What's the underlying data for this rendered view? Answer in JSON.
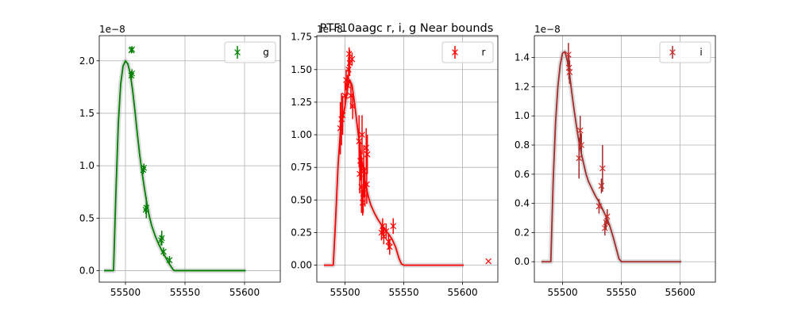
{
  "figure": {
    "title": "PTF10aagc  r, i, g Near bounds"
  },
  "chart_data": [
    {
      "type": "line",
      "panel": "left",
      "color": "#008000",
      "band_color": "#b0b0b0",
      "offset_label": "1e−8",
      "legend": {
        "label": "g",
        "placement": "top-right"
      },
      "grid": true,
      "xlim": [
        55478,
        55630
      ],
      "ylim": [
        -0.11,
        2.24
      ],
      "xticks": [
        55500,
        55550,
        55600
      ],
      "xtick_labels": [
        "55500",
        "55550",
        "55600"
      ],
      "yticks": [
        0.0,
        0.5,
        1.0,
        1.5,
        2.0
      ],
      "ytick_labels": [
        "0.0",
        "0.5",
        "1.0",
        "1.5",
        "2.0"
      ],
      "model": {
        "x": [
          55482,
          55488,
          55490,
          55492,
          55494,
          55496,
          55498,
          55500,
          55502,
          55504,
          55506,
          55508,
          55510,
          55512,
          55514,
          55516,
          55518,
          55520,
          55522,
          55525,
          55528,
          55531,
          55534,
          55537,
          55540,
          55541,
          55560,
          55580,
          55601
        ],
        "y": [
          0.0,
          0.0,
          0.0,
          0.75,
          1.4,
          1.78,
          1.95,
          2.0,
          1.97,
          1.88,
          1.72,
          1.52,
          1.3,
          1.1,
          0.93,
          0.78,
          0.64,
          0.52,
          0.43,
          0.33,
          0.25,
          0.18,
          0.12,
          0.06,
          0.01,
          0.0,
          0.0,
          0.0,
          0.0
        ]
      },
      "points": [
        {
          "x": 55505,
          "y": 2.1,
          "yerr": 0.03
        },
        {
          "x": 55505.5,
          "y": 2.11,
          "yerr": 0.03
        },
        {
          "x": 55505,
          "y": 1.86,
          "yerr": 0.04
        },
        {
          "x": 55505.5,
          "y": 1.88,
          "yerr": 0.04
        },
        {
          "x": 55515,
          "y": 0.96,
          "yerr": 0.04
        },
        {
          "x": 55515.5,
          "y": 0.98,
          "yerr": 0.04
        },
        {
          "x": 55517,
          "y": 0.58,
          "yerr": 0.04
        },
        {
          "x": 55517.5,
          "y": 0.6,
          "yerr": 0.1
        },
        {
          "x": 55530,
          "y": 0.29,
          "yerr": 0.05
        },
        {
          "x": 55530.5,
          "y": 0.31,
          "yerr": 0.07
        },
        {
          "x": 55532,
          "y": 0.18,
          "yerr": 0.04
        },
        {
          "x": 55537,
          "y": 0.1,
          "yerr": 0.04
        }
      ]
    },
    {
      "type": "line",
      "panel": "middle",
      "color": "#ff0000",
      "band_color": "#b0b0b0",
      "offset_label": "1e−8",
      "legend": {
        "label": "r",
        "placement": "top-right"
      },
      "grid": true,
      "xlim": [
        55476,
        55630
      ],
      "ylim": [
        -0.13,
        1.76
      ],
      "xticks": [
        55500,
        55550,
        55600
      ],
      "xtick_labels": [
        "55500",
        "55550",
        "55600"
      ],
      "yticks": [
        0.0,
        0.25,
        0.5,
        0.75,
        1.0,
        1.25,
        1.5,
        1.75
      ],
      "ytick_labels": [
        "0.00",
        "0.25",
        "0.50",
        "0.75",
        "1.00",
        "1.25",
        "1.50",
        "1.75"
      ],
      "model": {
        "x": [
          55482,
          55490,
          55492,
          55494,
          55496,
          55498,
          55500,
          55502,
          55504,
          55506,
          55508,
          55510,
          55512,
          55514,
          55516,
          55518,
          55520,
          55522,
          55525,
          55528,
          55531,
          55534,
          55537,
          55540,
          55543,
          55546,
          55548,
          55550,
          55570,
          55601
        ],
        "y": [
          0.0,
          0.0,
          0.35,
          0.75,
          1.02,
          1.12,
          1.22,
          1.35,
          1.42,
          1.38,
          1.25,
          1.1,
          0.95,
          0.82,
          0.7,
          0.6,
          0.52,
          0.46,
          0.4,
          0.35,
          0.31,
          0.27,
          0.24,
          0.2,
          0.14,
          0.05,
          0.01,
          0.0,
          0.0,
          0.0
        ]
      },
      "points": [
        {
          "x": 55496,
          "y": 1.05,
          "yerr": 0.2
        },
        {
          "x": 55497,
          "y": 1.12,
          "yerr": 0.2
        },
        {
          "x": 55498,
          "y": 1.15,
          "yerr": 0.15
        },
        {
          "x": 55500,
          "y": 1.3,
          "yerr": 0.1
        },
        {
          "x": 55501,
          "y": 1.42,
          "yerr": 0.08
        },
        {
          "x": 55502,
          "y": 1.38,
          "yerr": 0.08
        },
        {
          "x": 55503,
          "y": 1.5,
          "yerr": 0.1
        },
        {
          "x": 55503.5,
          "y": 1.62,
          "yerr": 0.05
        },
        {
          "x": 55504,
          "y": 1.55,
          "yerr": 0.1
        },
        {
          "x": 55505,
          "y": 1.3,
          "yerr": 0.1
        },
        {
          "x": 55506,
          "y": 1.58,
          "yerr": 0.05
        },
        {
          "x": 55506.5,
          "y": 1.22,
          "yerr": 0.1
        },
        {
          "x": 55512,
          "y": 0.95,
          "yerr": 0.2
        },
        {
          "x": 55512.5,
          "y": 0.7,
          "yerr": 0.15
        },
        {
          "x": 55513,
          "y": 0.8,
          "yerr": 0.15
        },
        {
          "x": 55514,
          "y": 0.6,
          "yerr": 0.2
        },
        {
          "x": 55514.5,
          "y": 1.0,
          "yerr": 0.15
        },
        {
          "x": 55515,
          "y": 0.48,
          "yerr": 0.1
        },
        {
          "x": 55515.5,
          "y": 0.55,
          "yerr": 0.15
        },
        {
          "x": 55516,
          "y": 0.72,
          "yerr": 0.2
        },
        {
          "x": 55517,
          "y": 0.6,
          "yerr": 0.15
        },
        {
          "x": 55518,
          "y": 0.9,
          "yerr": 0.15
        },
        {
          "x": 55518.5,
          "y": 0.62,
          "yerr": 0.15
        },
        {
          "x": 55519,
          "y": 0.85,
          "yerr": 0.15
        },
        {
          "x": 55531,
          "y": 0.25,
          "yerr": 0.06
        },
        {
          "x": 55532,
          "y": 0.3,
          "yerr": 0.06
        },
        {
          "x": 55533,
          "y": 0.22,
          "yerr": 0.06
        },
        {
          "x": 55535,
          "y": 0.26,
          "yerr": 0.06
        },
        {
          "x": 55537,
          "y": 0.18,
          "yerr": 0.06
        },
        {
          "x": 55538,
          "y": 0.14,
          "yerr": 0.06
        },
        {
          "x": 55541,
          "y": 0.3,
          "yerr": 0.06
        },
        {
          "x": 55622,
          "y": 0.03,
          "yerr": 0.0
        }
      ]
    },
    {
      "type": "line",
      "panel": "right",
      "color": "#a52a2a",
      "point_color": "#d0302a",
      "band_color": "#b0b0b0",
      "offset_label": "1e−8",
      "legend": {
        "label": "i",
        "placement": "top-right"
      },
      "grid": true,
      "xlim": [
        55476,
        55630
      ],
      "ylim": [
        -0.14,
        1.55
      ],
      "xticks": [
        55500,
        55550,
        55600
      ],
      "xtick_labels": [
        "55500",
        "55550",
        "55600"
      ],
      "yticks": [
        0.0,
        0.2,
        0.4,
        0.6,
        0.8,
        1.0,
        1.2,
        1.4
      ],
      "ytick_labels": [
        "0.0",
        "0.2",
        "0.4",
        "0.6",
        "0.8",
        "1.0",
        "1.2",
        "1.4"
      ],
      "model": {
        "x": [
          55482,
          55490,
          55492,
          55494,
          55496,
          55498,
          55500,
          55502,
          55504,
          55506,
          55508,
          55510,
          55512,
          55514,
          55516,
          55518,
          55520,
          55522,
          55525,
          55528,
          55531,
          55534,
          55537,
          55540,
          55543,
          55546,
          55548,
          55550,
          55570,
          55601
        ],
        "y": [
          0.0,
          0.0,
          0.55,
          0.95,
          1.2,
          1.35,
          1.43,
          1.44,
          1.38,
          1.28,
          1.15,
          1.03,
          0.92,
          0.82,
          0.74,
          0.67,
          0.6,
          0.55,
          0.5,
          0.45,
          0.41,
          0.36,
          0.31,
          0.25,
          0.17,
          0.08,
          0.02,
          0.0,
          0.0,
          0.0
        ]
      },
      "points": [
        {
          "x": 55505,
          "y": 1.42,
          "yerr": 0.08
        },
        {
          "x": 55505.5,
          "y": 1.33,
          "yerr": 0.08
        },
        {
          "x": 55506,
          "y": 1.3,
          "yerr": 0.08
        },
        {
          "x": 55514,
          "y": 0.71,
          "yerr": 0.14
        },
        {
          "x": 55515,
          "y": 0.9,
          "yerr": 0.1
        },
        {
          "x": 55516,
          "y": 0.8,
          "yerr": 0.08
        },
        {
          "x": 55531,
          "y": 0.38,
          "yerr": 0.05
        },
        {
          "x": 55533,
          "y": 0.52,
          "yerr": 0.05
        },
        {
          "x": 55534,
          "y": 0.64,
          "yerr": 0.16
        },
        {
          "x": 55536,
          "y": 0.23,
          "yerr": 0.05
        },
        {
          "x": 55537,
          "y": 0.27,
          "yerr": 0.05
        },
        {
          "x": 55538,
          "y": 0.31,
          "yerr": 0.05
        }
      ]
    }
  ]
}
